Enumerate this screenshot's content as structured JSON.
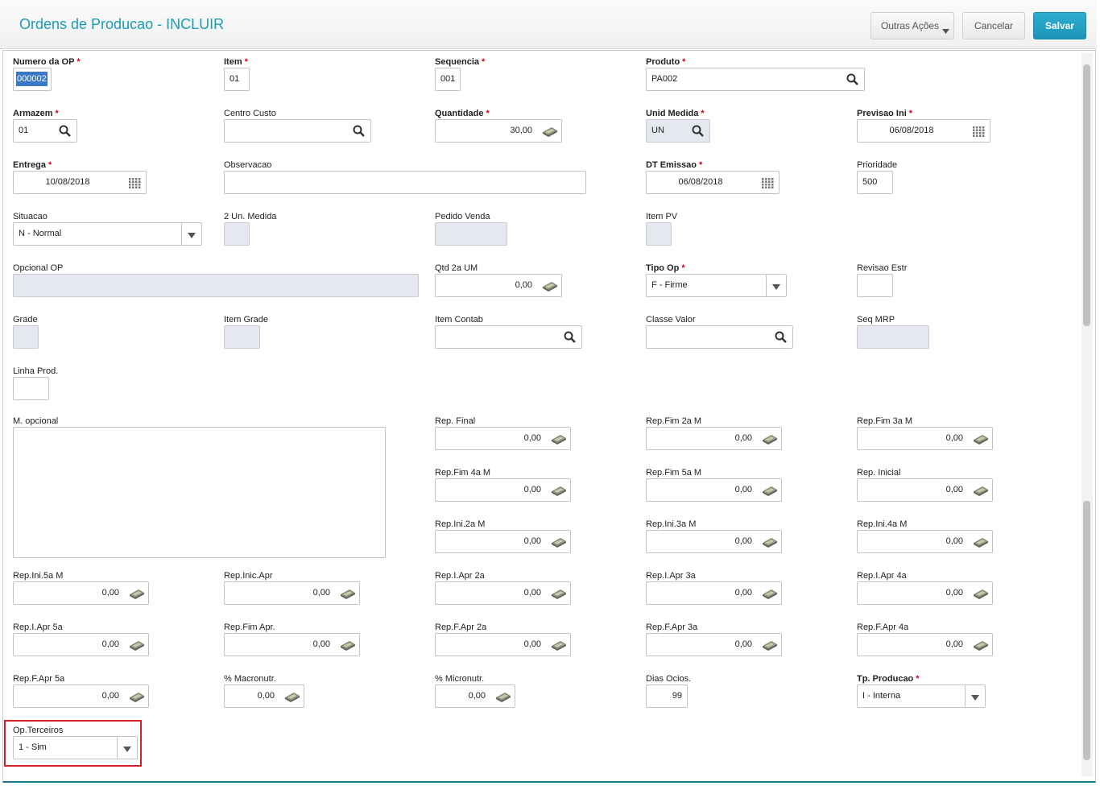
{
  "header": {
    "title": "Ordens de Producao - INCLUIR",
    "buttons": [
      "Outras Ações",
      "Cancelar",
      "Salvar"
    ]
  },
  "required_mark": "*",
  "fields": [
    {
      "label": "Numero da OP",
      "required": true,
      "value": "000002"
    },
    {
      "label": "Item",
      "required": true,
      "value": "01"
    },
    {
      "label": "Sequencia",
      "required": true,
      "value": "001"
    },
    {
      "label": "Produto",
      "required": true,
      "value": "PA002"
    },
    {
      "label": "Armazem",
      "required": true,
      "value": "01"
    },
    {
      "label": "Centro Custo"
    },
    {
      "label": "Quantidade",
      "required": true,
      "value": "30,00"
    },
    {
      "label": "Unid Medida",
      "required": true,
      "value": "UN"
    },
    {
      "label": "Previsao Ini",
      "required": true,
      "value": "06/08/2018"
    },
    {
      "label": "Entrega",
      "required": true,
      "value": "10/08/2018"
    },
    {
      "label": "Observacao"
    },
    {
      "label": "DT Emissao",
      "required": true,
      "value": "06/08/2018"
    },
    {
      "label": "Prioridade",
      "value": "500"
    },
    {
      "label": "Situacao",
      "value": "N - Normal"
    },
    {
      "label": "2 Un. Medida"
    },
    {
      "label": "Pedido Venda"
    },
    {
      "label": "Item PV"
    },
    {
      "label": "Opcional OP"
    },
    {
      "label": "Qtd 2a UM",
      "value": "0,00"
    },
    {
      "label": "Tipo Op",
      "required": true,
      "value": "F - Firme"
    },
    {
      "label": "Revisao Estr"
    },
    {
      "label": "Grade"
    },
    {
      "label": "Item Grade"
    },
    {
      "label": "Item Contab"
    },
    {
      "label": "Classe Valor"
    },
    {
      "label": "Seq MRP"
    },
    {
      "label": "Linha Prod."
    },
    {
      "label": "M. opcional"
    },
    {
      "label": "Rep. Final",
      "value": "0,00"
    },
    {
      "label": "Rep.Fim 2a M",
      "value": "0,00"
    },
    {
      "label": "Rep.Fim 3a M",
      "value": "0,00"
    },
    {
      "label": "Rep.Fim 4a M",
      "value": "0,00"
    },
    {
      "label": "Rep.Fim 5a M",
      "value": "0,00"
    },
    {
      "label": "Rep. Inicial",
      "value": "0,00"
    },
    {
      "label": "Rep.Ini.2a M",
      "value": "0,00"
    },
    {
      "label": "Rep.Ini.3a M",
      "value": "0,00"
    },
    {
      "label": "Rep.Ini.4a M",
      "value": "0,00"
    },
    {
      "label": "Rep.Ini.5a M",
      "value": "0,00"
    },
    {
      "label": "Rep.Inic.Apr",
      "value": "0,00"
    },
    {
      "label": "Rep.I.Apr 2a",
      "value": "0,00"
    },
    {
      "label": "Rep.I.Apr 3a",
      "value": "0,00"
    },
    {
      "label": "Rep.I.Apr 4a",
      "value": "0,00"
    },
    {
      "label": "Rep.I.Apr 5a",
      "value": "0,00"
    },
    {
      "label": "Rep.Fim Apr.",
      "value": "0,00"
    },
    {
      "label": "Rep.F.Apr 2a",
      "value": "0,00"
    },
    {
      "label": "Rep.F.Apr 3a",
      "value": "0,00"
    },
    {
      "label": "Rep.F.Apr 4a",
      "value": "0,00"
    },
    {
      "label": "Rep.F.Apr 5a",
      "value": "0,00"
    },
    {
      "label": "% Macronutr.",
      "value": "0,00"
    },
    {
      "label": "% Micronutr.",
      "value": "0,00"
    },
    {
      "label": "Dias Ocios.",
      "value": "99"
    },
    {
      "label": "Tp. Producao",
      "required": true,
      "value": "I - Interna"
    },
    {
      "label": "Op.Terceiros",
      "value": "1 - Sim"
    }
  ]
}
